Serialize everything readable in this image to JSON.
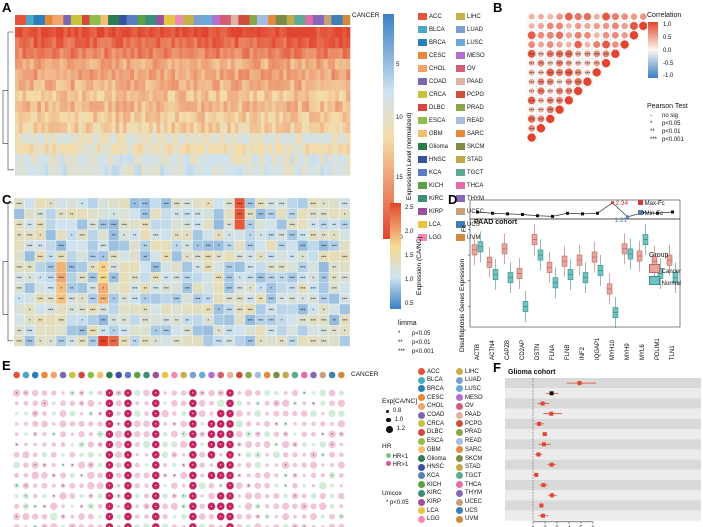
{
  "panels": {
    "A": "A",
    "B": "B",
    "C": "C",
    "D": "D",
    "E": "E",
    "F": "F"
  },
  "panel_a": {
    "top_label": "CANCER",
    "genes": [
      "ACTB",
      "TLN1",
      "CAPZB",
      "STN",
      "FLNB",
      "IQGAP1",
      "ACTN4",
      "MYL6",
      "FLNA",
      "MYH9",
      "MYH10",
      "PDLIM1",
      "CD2AP",
      "INF2"
    ],
    "colorbar_title": "Expression Level (normalized)",
    "colorbar_ticks": [
      "5",
      "10",
      "15",
      "20"
    ]
  },
  "cancers_left": [
    "ACC",
    "BLCA",
    "BRCA",
    "CESC",
    "CHOL",
    "COAD",
    "CRCA",
    "DLBC",
    "ESCA",
    "GBM",
    "Glioma",
    "HNSC",
    "KCA",
    "KICH",
    "KIRC",
    "KIRP",
    "LCA",
    "LGG"
  ],
  "cancers_right": [
    "LIHC",
    "LUAD",
    "LUSC",
    "MESO",
    "OV",
    "PAAD",
    "PCPG",
    "PRAD",
    "READ",
    "SARC",
    "SKCM",
    "STAD",
    "TGCT",
    "THCA",
    "THYM",
    "UCEC",
    "UCS",
    "UVM"
  ],
  "cancer_colors_left": [
    "#e5533c",
    "#4aa9c9",
    "#2b7fb8",
    "#e6873a",
    "#f3a36b",
    "#7b66b0",
    "#c9c23b",
    "#d6463e",
    "#8fbf4a",
    "#f0c070",
    "#2c7c4f",
    "#3a4fa0",
    "#5a7cc0",
    "#5ba043",
    "#3c8d7a",
    "#9a4f9f",
    "#e8c443",
    "#f28ab8"
  ],
  "cancer_colors_right": [
    "#c7b04c",
    "#7b9fcf",
    "#6ca8d8",
    "#b86ed0",
    "#d65c76",
    "#e0b3a3",
    "#d04f3a",
    "#8aa64b",
    "#a5bde0",
    "#e8883f",
    "#7c8c45",
    "#c2a94a",
    "#5ea896",
    "#e36da8",
    "#8765b8",
    "#c8a07a",
    "#3e7fb5",
    "#d08a3d"
  ],
  "panel_b": {
    "genes": [
      "CAPZB",
      "ACTB",
      "MYL6",
      "INF2",
      "TLN1",
      "FLNA",
      "FLNB",
      "MYH10",
      "CD2AP",
      "PDLIM1",
      "MYH9",
      "ACTN4",
      "IQGAP1",
      "DSTN"
    ],
    "xgenes": [
      "DSTN",
      "IQGAP1",
      "ACTN4",
      "MYH9",
      "PDLIM1",
      "CD2AP",
      "MYH10",
      "FLNB",
      "FLNA",
      "TLN1",
      "INF2",
      "MYL6",
      "ACTB",
      "CAPZB"
    ],
    "corr_title": "Correlation",
    "corr_ticks": [
      "1.0",
      "0.5",
      "0.0",
      "-0.5",
      "-1.0"
    ],
    "test_title": "Pearson Test",
    "test_items": [
      "no sig",
      "p<0.05",
      "p<0.01",
      "p<0.001"
    ],
    "test_marks": [
      "-",
      "*",
      "**",
      "***"
    ]
  },
  "panel_c": {
    "genes": [
      "MYH10",
      "INF2",
      "FLNB",
      "CAPZB",
      "ACTB",
      "MYL6",
      "ACTN4",
      "MYH9",
      "IQGAP1",
      "FLNA",
      "DSTN",
      "TLN1",
      "CD2AP",
      "PDLIM1"
    ],
    "xcancers": [
      "ACC",
      "BLCA",
      "BRCA",
      "CESC",
      "CHOL",
      "COAD",
      "CRCA",
      "ESCA",
      "GBM",
      "Glioma",
      "HNSC",
      "KCA",
      "KICH",
      "KIRC",
      "KIRP",
      "LCA",
      "LGG",
      "LIHC",
      "LUAD",
      "LUSC",
      "OV",
      "PAAD",
      "PCPG",
      "PRAD",
      "READ",
      "SARC",
      "SKCM",
      "STAD",
      "TGCT",
      "THCA",
      "UCEC",
      "UCS"
    ],
    "colorbar_title": "Expression (CA/NC)",
    "colorbar_ticks": [
      "2.5",
      "2.0",
      "1.5",
      "1.0",
      "0.5"
    ],
    "limma_title": "limma",
    "limma_items": [
      "p<0.05",
      "p<0.01",
      "p<0.001"
    ],
    "limma_marks": [
      "*",
      "**",
      "***"
    ]
  },
  "panel_d": {
    "title": "PAAD cohort",
    "fc_label": "Fc",
    "ylabel": "Disulfidptosis Genes Expression",
    "max_fc": "2.34",
    "min_fc": "1.21",
    "legend_max": "Max-Fc",
    "legend_min": "Min-Fc",
    "group_title": "Group",
    "group_items": [
      "Cancer",
      "Normal"
    ],
    "group_colors": [
      "#e8a6a0",
      "#6fc2c0"
    ],
    "ticks": [
      "2.5",
      "5.0",
      "7.5",
      "10.0"
    ],
    "genes": [
      "ACTB",
      "ACTN4",
      "CAPZB",
      "CD2AP",
      "DSTN",
      "FLNA",
      "FLNB",
      "INF2",
      "IQGAP1",
      "MYH10",
      "MYH9",
      "MYL6",
      "PDLIM1",
      "TLN1"
    ],
    "fc_values": [
      1.6,
      1.5,
      1.45,
      1.4,
      1.3,
      1.25,
      1.5,
      1.45,
      1.5,
      2.34,
      1.21,
      1.55,
      1.5,
      1.6
    ],
    "cancer_median": [
      8.0,
      6.8,
      8.1,
      5.7,
      9.0,
      6.3,
      6.9,
      7.0,
      7.3,
      4.2,
      8.1,
      7.4,
      6.9,
      7.0
    ],
    "normal_median": [
      8.3,
      5.6,
      5.3,
      2.5,
      7.5,
      4.8,
      5.6,
      5.3,
      6.0,
      1.9,
      7.6,
      9.0,
      5.7,
      5.3
    ]
  },
  "panel_e": {
    "top_labels": [
      "Glioma",
      "KCA",
      "KIRC",
      "LGG",
      "MESO",
      "UVM"
    ],
    "top_label": "CANCER",
    "genes": [
      "ACTB",
      "ACTN4",
      "CAPZB",
      "CD2AP",
      "DSTN",
      "FLNA",
      "FLNB",
      "INF2",
      "IQGAP1",
      "MYH10",
      "MYH9",
      "MYL6",
      "PDLIM1",
      "TLN1"
    ],
    "exp_title": "Exp[CA/NC]",
    "exp_items": [
      "0.8",
      "1.0",
      "1.2"
    ],
    "hr_title": "HR",
    "hr_items": [
      "HR<1",
      "HR>1"
    ],
    "unicox_title": "Unicox",
    "unicox_item": "p<0.05",
    "unicox_mark": "*"
  },
  "panel_f": {
    "title": "Glioma cohort",
    "rows": [
      {
        "gene": "ACTB",
        "hr": "4.88[3.81-6.26]",
        "p": "p<0.001",
        "v": 4.88,
        "lo": 3.81,
        "hi": 6.26
      },
      {
        "gene": "ACTN4",
        "hr": "2.55[2.08-3.13]",
        "p": "p<0.001",
        "v": 2.55,
        "lo": 2.08,
        "hi": 3.13
      },
      {
        "gene": "CAPZB",
        "hr": "1.80[1.38-2.34]",
        "p": "p<0.001",
        "v": 1.8,
        "lo": 1.38,
        "hi": 2.34
      },
      {
        "gene": "CD2AP",
        "hr": "2.52[1.86-3.43]",
        "p": "p<0.001",
        "v": 2.52,
        "lo": 1.86,
        "hi": 3.43
      },
      {
        "gene": "DSTN",
        "hr": "1.51[1.18-1.94]",
        "p": "p<0.001",
        "v": 1.51,
        "lo": 1.18,
        "hi": 1.94
      },
      {
        "gene": "FLNA",
        "hr": "1.98[1.78-2.20]",
        "p": "p<0.001",
        "v": 1.98,
        "lo": 1.78,
        "hi": 2.2
      },
      {
        "gene": "FLNB",
        "hr": "1.91[1.47-2.48]",
        "p": "p<0.001",
        "v": 1.91,
        "lo": 1.47,
        "hi": 2.48
      },
      {
        "gene": "INF2",
        "hr": "1.45[1.18-1.77]",
        "p": "p<0.001",
        "v": 1.45,
        "lo": 1.18,
        "hi": 1.77
      },
      {
        "gene": "IQGAP1",
        "hr": "2.55[2.23-2.92]",
        "p": "p<0.001",
        "v": 2.55,
        "lo": 2.23,
        "hi": 2.92
      },
      {
        "gene": "MYH10",
        "hr": "1.27[1.11-1.45]",
        "p": "p<0.001",
        "v": 1.27,
        "lo": 1.11,
        "hi": 1.45
      },
      {
        "gene": "MYH9",
        "hr": "1.87[1.56-2.25]",
        "p": "p<0.001",
        "v": 1.87,
        "lo": 1.56,
        "hi": 2.25
      },
      {
        "gene": "MYL6",
        "hr": "2.58[2.24-2.98]",
        "p": "p<0.001",
        "v": 2.58,
        "lo": 2.24,
        "hi": 2.98
      },
      {
        "gene": "PDLIM1",
        "hr": "1.70[1.57-1.84]",
        "p": "p<0.001",
        "v": 1.7,
        "lo": 1.57,
        "hi": 1.84
      },
      {
        "gene": "TLN1",
        "hr": "1.83[1.46-2.29]",
        "p": "p<0.001",
        "v": 1.83,
        "lo": 1.46,
        "hi": 2.29
      }
    ],
    "ticks": [
      "1",
      "2",
      "3",
      "4",
      "5",
      "6"
    ]
  }
}
